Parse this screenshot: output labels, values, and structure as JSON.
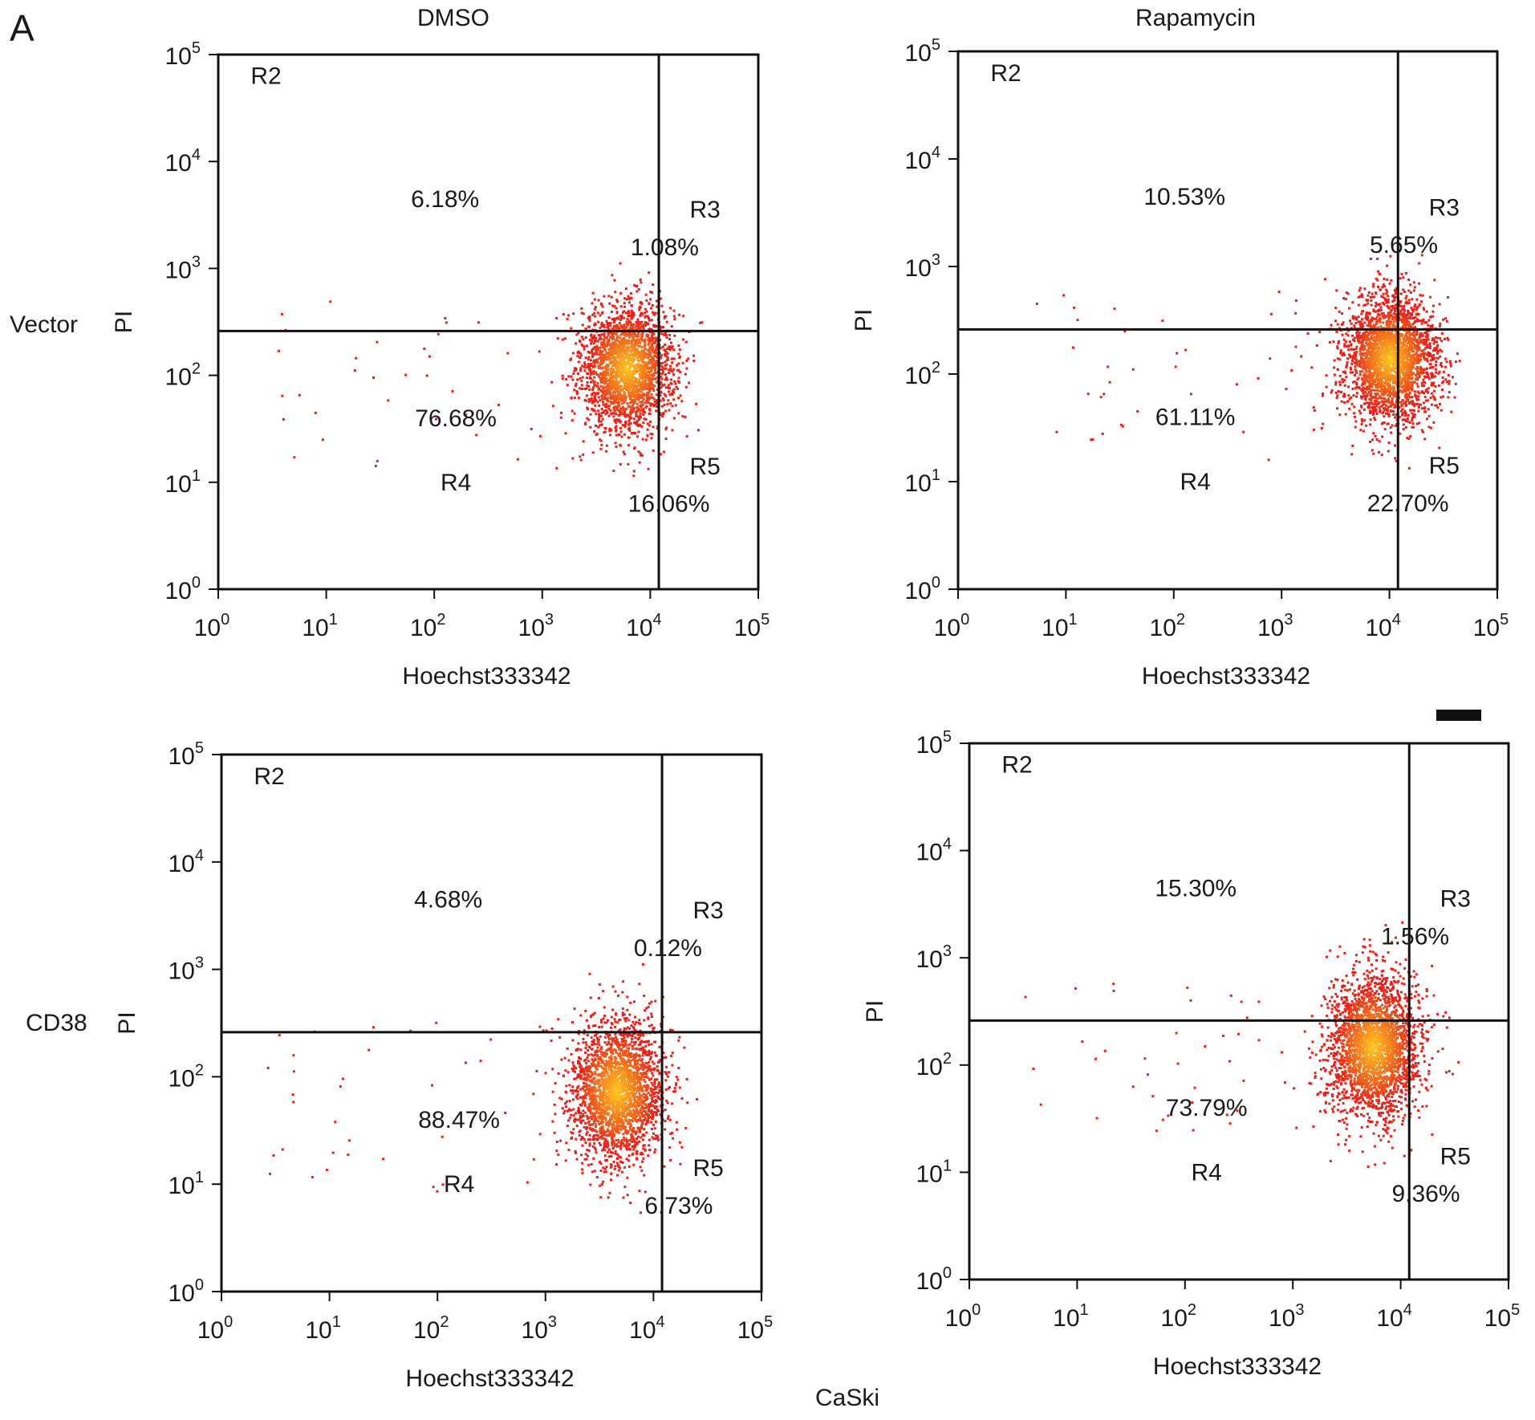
{
  "figure": {
    "panel_letter": "A",
    "column_titles": [
      "DMSO",
      "Rapamycin"
    ],
    "row_labels": [
      "Vector",
      "CD38"
    ],
    "caption": "CaSki",
    "colors": {
      "axis": "#111111",
      "dot_low": "#e8211a",
      "dot_high": "#ffd21e",
      "background": "#ffffff"
    }
  },
  "chart_data": [
    {
      "type": "scatter",
      "condition": "DMSO",
      "group": "Vector",
      "xlabel": "Hoechst333342",
      "ylabel": "PI",
      "xscale": "log",
      "yscale": "log",
      "xlim": [
        1,
        100000
      ],
      "ylim": [
        1,
        100000
      ],
      "tick_values": [
        1,
        10,
        100,
        1000,
        10000,
        100000
      ],
      "tick_labels": [
        [
          "10",
          "0"
        ],
        [
          "10",
          "1"
        ],
        [
          "10",
          "2"
        ],
        [
          "10",
          "3"
        ],
        [
          "10",
          "4"
        ],
        [
          "10",
          "5"
        ]
      ],
      "gate": {
        "x": 12000,
        "y": 260
      },
      "cluster": {
        "x": 6000,
        "y": 120,
        "spread_x": 0.22,
        "spread_y": 0.3,
        "count": 2300
      },
      "regions": [
        {
          "name": "R2",
          "percent": "6.18%"
        },
        {
          "name": "R3",
          "percent": "1.08%"
        },
        {
          "name": "R4",
          "percent": "76.68%"
        },
        {
          "name": "R5",
          "percent": "16.06%"
        }
      ]
    },
    {
      "type": "scatter",
      "condition": "Rapamycin",
      "group": "Vector",
      "xlabel": "Hoechst333342",
      "ylabel": "PI",
      "xscale": "log",
      "yscale": "log",
      "xlim": [
        1,
        100000
      ],
      "ylim": [
        1,
        100000
      ],
      "tick_values": [
        1,
        10,
        100,
        1000,
        10000,
        100000
      ],
      "tick_labels": [
        [
          "10",
          "0"
        ],
        [
          "10",
          "1"
        ],
        [
          "10",
          "2"
        ],
        [
          "10",
          "3"
        ],
        [
          "10",
          "4"
        ],
        [
          "10",
          "5"
        ]
      ],
      "gate": {
        "x": 12000,
        "y": 260
      },
      "cluster": {
        "x": 10000,
        "y": 140,
        "spread_x": 0.22,
        "spread_y": 0.3,
        "count": 2600
      },
      "regions": [
        {
          "name": "R2",
          "percent": "10.53%"
        },
        {
          "name": "R3",
          "percent": "5.65%"
        },
        {
          "name": "R4",
          "percent": "61.11%"
        },
        {
          "name": "R5",
          "percent": "22.70%"
        }
      ]
    },
    {
      "type": "scatter",
      "condition": "DMSO",
      "group": "CD38",
      "xlabel": "Hoechst333342",
      "ylabel": "PI",
      "xscale": "log",
      "yscale": "log",
      "xlim": [
        1,
        100000
      ],
      "ylim": [
        1,
        100000
      ],
      "tick_values": [
        1,
        10,
        100,
        1000,
        10000,
        100000
      ],
      "tick_labels": [
        [
          "10",
          "0"
        ],
        [
          "10",
          "1"
        ],
        [
          "10",
          "2"
        ],
        [
          "10",
          "3"
        ],
        [
          "10",
          "4"
        ],
        [
          "10",
          "5"
        ]
      ],
      "gate": {
        "x": 12000,
        "y": 260
      },
      "cluster": {
        "x": 4500,
        "y": 75,
        "spread_x": 0.22,
        "spread_y": 0.34,
        "count": 2400
      },
      "regions": [
        {
          "name": "R2",
          "percent": "4.68%"
        },
        {
          "name": "R3",
          "percent": "0.12%"
        },
        {
          "name": "R4",
          "percent": "88.47%"
        },
        {
          "name": "R5",
          "percent": "6.73%"
        }
      ]
    },
    {
      "type": "scatter",
      "condition": "Rapamycin",
      "group": "CD38",
      "xlabel": "Hoechst333342",
      "ylabel": "PI",
      "xscale": "log",
      "yscale": "log",
      "xlim": [
        1,
        100000
      ],
      "ylim": [
        1,
        100000
      ],
      "tick_values": [
        1,
        10,
        100,
        1000,
        10000,
        100000
      ],
      "tick_labels": [
        [
          "10",
          "0"
        ],
        [
          "10",
          "1"
        ],
        [
          "10",
          "2"
        ],
        [
          "10",
          "3"
        ],
        [
          "10",
          "4"
        ],
        [
          "10",
          "5"
        ]
      ],
      "gate": {
        "x": 12000,
        "y": 260
      },
      "cluster": {
        "x": 5500,
        "y": 150,
        "spread_x": 0.22,
        "spread_y": 0.34,
        "count": 2600
      },
      "regions": [
        {
          "name": "R2",
          "percent": "15.30%"
        },
        {
          "name": "R3",
          "percent": "1.56%"
        },
        {
          "name": "R4",
          "percent": "73.79%"
        },
        {
          "name": "R5",
          "percent": "9.36%"
        }
      ]
    }
  ]
}
